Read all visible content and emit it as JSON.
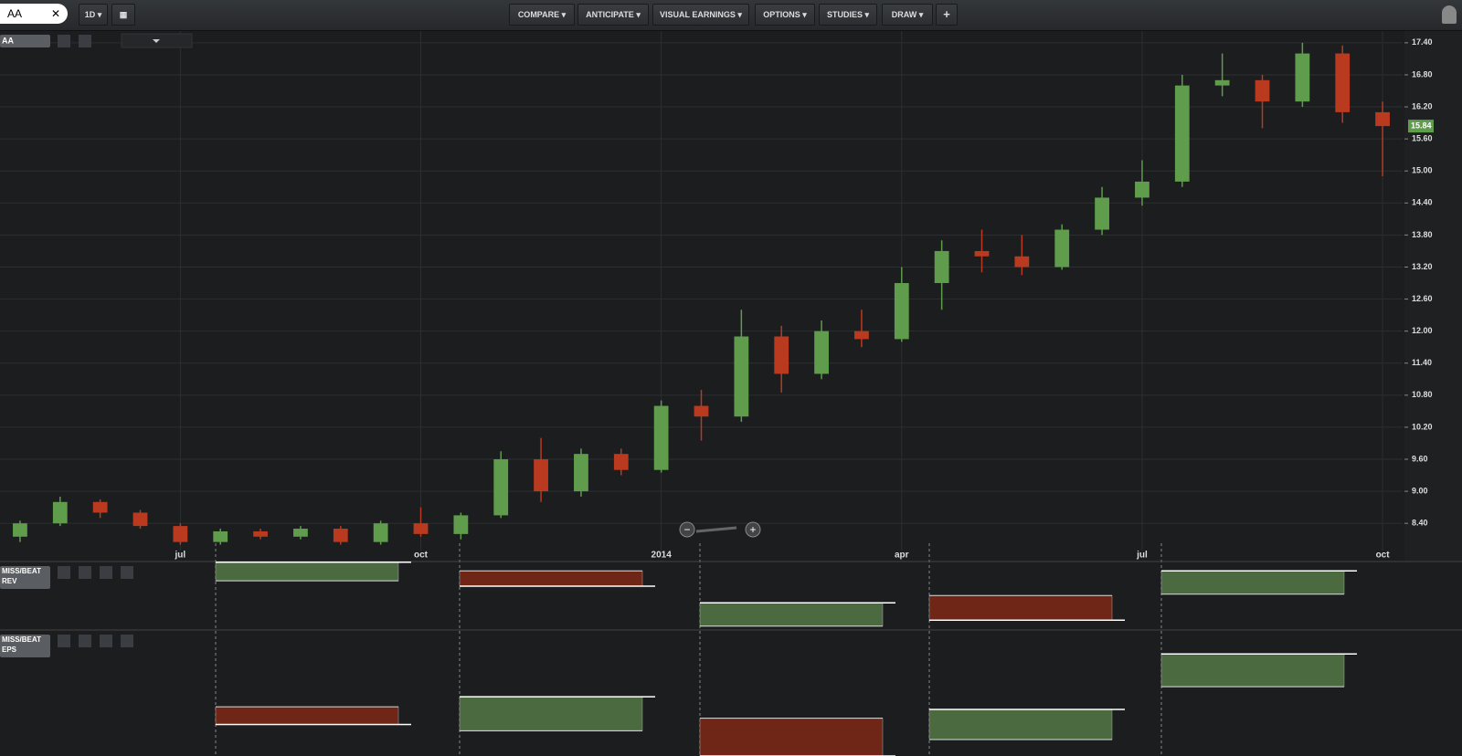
{
  "toolbar": {
    "symbol": "AA",
    "interval": "1D",
    "buttons": [
      "COMPARE",
      "ANTICIPATE",
      "VISUAL EARNINGS",
      "OPTIONS",
      "STUDIES",
      "DRAW"
    ]
  },
  "chart_data": [
    {
      "type": "candlestick",
      "title": "AA",
      "categories": [
        null,
        null,
        null,
        null,
        "jul",
        null,
        null,
        null,
        null,
        null,
        "oct",
        null,
        null,
        null,
        null,
        null,
        "2014",
        null,
        null,
        null,
        null,
        null,
        "apr",
        null,
        null,
        null,
        null,
        null,
        "jul",
        null,
        null,
        null,
        null,
        null,
        "oct"
      ],
      "open": [
        8.15,
        8.4,
        8.8,
        8.6,
        8.35,
        8.05,
        8.25,
        8.15,
        8.3,
        8.05,
        8.4,
        8.2,
        8.55,
        9.6,
        9.0,
        9.7,
        9.4,
        10.6,
        10.4,
        11.9,
        11.2,
        12.0,
        11.85,
        12.9,
        13.5,
        13.4,
        13.2,
        13.9,
        14.5,
        14.8,
        16.6,
        16.7,
        16.3,
        17.2,
        16.1
      ],
      "high": [
        8.45,
        8.9,
        8.85,
        8.65,
        8.4,
        8.3,
        8.3,
        8.35,
        8.35,
        8.45,
        8.7,
        8.6,
        9.75,
        10.0,
        9.8,
        9.8,
        10.7,
        10.9,
        12.4,
        12.1,
        12.2,
        12.4,
        13.2,
        13.7,
        13.9,
        13.8,
        14.0,
        14.7,
        15.2,
        16.8,
        17.2,
        16.8,
        17.4,
        17.35,
        16.3
      ],
      "low": [
        8.05,
        8.35,
        8.5,
        8.3,
        8.0,
        8.0,
        8.1,
        8.1,
        8.0,
        8.0,
        8.15,
        8.1,
        8.5,
        8.8,
        8.9,
        9.3,
        9.35,
        9.95,
        10.3,
        10.85,
        11.1,
        11.7,
        11.8,
        12.4,
        13.1,
        13.05,
        13.15,
        13.8,
        14.35,
        14.7,
        16.4,
        15.8,
        16.2,
        15.9,
        14.9
      ],
      "close": [
        8.4,
        8.8,
        8.6,
        8.35,
        8.05,
        8.25,
        8.15,
        8.3,
        8.05,
        8.4,
        8.2,
        8.55,
        9.6,
        9.0,
        9.7,
        9.4,
        10.6,
        10.4,
        11.9,
        11.2,
        12.0,
        11.85,
        12.9,
        13.5,
        13.4,
        13.2,
        13.9,
        14.5,
        14.8,
        16.6,
        16.7,
        16.3,
        17.2,
        16.1,
        15.84
      ],
      "up_color": "#5f9c4b",
      "down_color": "#b93a1f",
      "grid": true,
      "ylim": [
        7.89,
        17.62
      ],
      "yticks": [
        {
          "value": 8.4,
          "label": "8.40"
        },
        {
          "value": 9,
          "label": "9.00"
        },
        {
          "value": 9.6,
          "label": "9.60"
        },
        {
          "value": 10.2,
          "label": "10.20"
        },
        {
          "value": 10.8,
          "label": "10.80"
        },
        {
          "value": 11.4,
          "label": "11.40"
        },
        {
          "value": 12,
          "label": "12.00"
        },
        {
          "value": 12.6,
          "label": "12.60"
        },
        {
          "value": 13.2,
          "label": "13.20"
        },
        {
          "value": 13.8,
          "label": "13.80"
        },
        {
          "value": 14.4,
          "label": "14.40"
        },
        {
          "value": 15,
          "label": "15.00"
        },
        {
          "value": 15.6,
          "label": "15.60"
        },
        {
          "value": 16.2,
          "label": "16.20"
        },
        {
          "value": 16.8,
          "label": "16.80"
        },
        {
          "value": 17.4,
          "label": "17.40"
        }
      ]
    },
    {
      "type": "range-bar",
      "title": [
        "MISS/BEAT",
        "REV"
      ],
      "ylim": [
        0,
        10
      ],
      "estimate": [
        7.1,
        8.6,
        0.3,
        4.9,
        5.1
      ],
      "actual": [
        9.9,
        6.3,
        3.8,
        1.2,
        8.6
      ],
      "beat_color": "#4b6a3f",
      "miss_color": "#6f2617"
    },
    {
      "type": "range-bar",
      "title": [
        "MISS/BEAT",
        "EPS"
      ],
      "ylim": [
        0,
        10
      ],
      "estimate": [
        3.9,
        2.0,
        3.0,
        1.3,
        5.5
      ],
      "actual": [
        2.5,
        4.7,
        0.0,
        3.7,
        8.1
      ],
      "beat_color": "#4b6a3f",
      "miss_color": "#6f2617"
    }
  ]
}
